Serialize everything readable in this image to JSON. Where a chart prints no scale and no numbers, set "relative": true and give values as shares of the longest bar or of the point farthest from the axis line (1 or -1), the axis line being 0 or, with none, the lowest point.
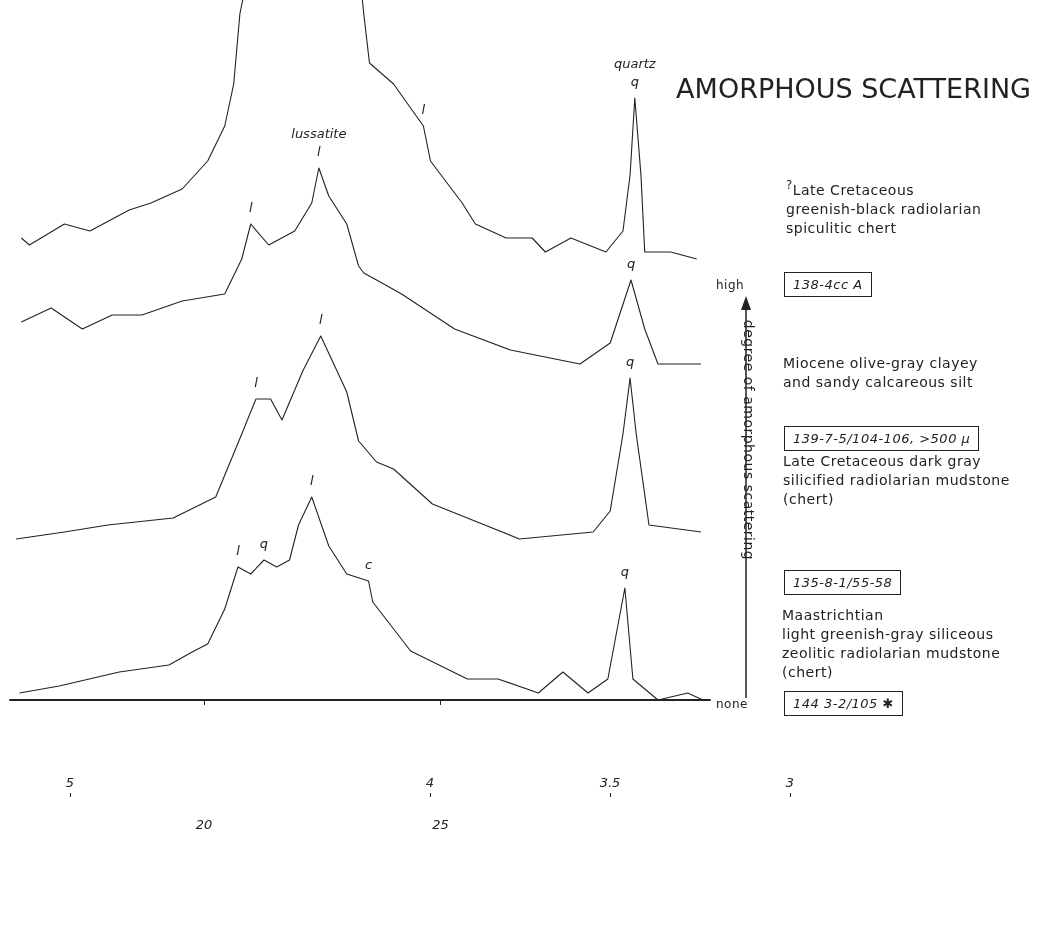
{
  "chart_data": {
    "type": "line",
    "relative": true,
    "title": "AMORPHOUS SCATTERING",
    "xlim": [
      15.9,
      30.7
    ],
    "xticks": [
      20,
      25
    ],
    "x2lim": [
      5,
      3
    ],
    "x2ticks": [
      5,
      4,
      3.5,
      3
    ],
    "grid": false,
    "legend": false,
    "marker": "none",
    "series": [
      {
        "name": "138-4cc A",
        "color": "#222222",
        "x": [
          16.14,
          16.31,
          17.05,
          17.59,
          18.42,
          18.88,
          19.54,
          20.08,
          20.44,
          20.63,
          20.76,
          20.82,
          21.0,
          23.35,
          23.38,
          23.5,
          24.01,
          24.64,
          24.79,
          25.46,
          25.74,
          26.39,
          26.94,
          27.22,
          27.76,
          28.5,
          28.86,
          29.01,
          29.11,
          29.24,
          29.32,
          29.87,
          30.42
        ],
        "values": [
          0.66,
          0.65,
          0.68,
          0.67,
          0.7,
          0.71,
          0.73,
          0.77,
          0.82,
          0.88,
          0.98,
          1,
          null,
          1,
          0.98,
          0.91,
          0.88,
          0.82,
          0.77,
          0.71,
          0.68,
          0.66,
          0.66,
          0.64,
          0.66,
          0.64,
          0.67,
          0.75,
          0.86,
          0.75,
          0.64,
          0.64,
          0.63
        ]
      },
      {
        "name": "139-7-5/104-106, >500 µ",
        "color": "#222222",
        "x": [
          16.14,
          16.77,
          17.43,
          18.06,
          18.69,
          19.54,
          20.44,
          20.8,
          20.99,
          21.37,
          21.92,
          22.28,
          22.43,
          22.64,
          23.02,
          23.27,
          23.38,
          23.65,
          24.18,
          25.3,
          26.48,
          27.95,
          28.59,
          29.03,
          29.32,
          29.6,
          30.51
        ],
        "values": [
          0.54,
          0.56,
          0.53,
          0.55,
          0.55,
          0.57,
          0.58,
          0.63,
          0.68,
          0.65,
          0.67,
          0.71,
          0.76,
          0.72,
          0.68,
          0.62,
          0.61,
          0.6,
          0.58,
          0.53,
          0.5,
          0.48,
          0.51,
          0.6,
          0.53,
          0.48,
          0.48
        ]
      },
      {
        "name": "135-8-1/55-58",
        "color": "#222222",
        "x": [
          16.03,
          17.05,
          17.97,
          19.35,
          20.25,
          20.8,
          21.1,
          21.41,
          21.65,
          22.09,
          22.47,
          23.02,
          23.27,
          23.65,
          24.01,
          24.83,
          25.57,
          26.67,
          28.23,
          28.59,
          28.86,
          29.01,
          29.14,
          29.41,
          30.51
        ],
        "values": [
          0.23,
          0.24,
          0.25,
          0.26,
          0.29,
          0.38,
          0.43,
          0.43,
          0.4,
          0.47,
          0.52,
          0.44,
          0.37,
          0.34,
          0.33,
          0.28,
          0.26,
          0.23,
          0.24,
          0.27,
          0.38,
          0.46,
          0.38,
          0.25,
          0.24
        ]
      },
      {
        "name": "144 3-2/105 ✱",
        "color": "#222222",
        "x": [
          16.1,
          16.94,
          18.21,
          19.26,
          19.79,
          20.08,
          20.44,
          20.72,
          20.99,
          21.27,
          21.54,
          21.81,
          22.0,
          22.28,
          22.64,
          23.02,
          23.48,
          23.57,
          24.37,
          25.57,
          26.22,
          27.07,
          27.59,
          28.12,
          28.54,
          28.9,
          29.07,
          29.6,
          30.23,
          30.55
        ],
        "values": [
          0.01,
          0.02,
          0.04,
          0.05,
          0.07,
          0.08,
          0.13,
          0.19,
          0.18,
          0.2,
          0.19,
          0.2,
          0.25,
          0.29,
          0.22,
          0.18,
          0.17,
          0.14,
          0.07,
          0.03,
          0.03,
          0.01,
          0.04,
          0.01,
          0.03,
          0.16,
          0.03,
          0,
          0.01,
          0
        ]
      }
    ],
    "annotations": [
      {
        "text": "quartz",
        "x": 29.11,
        "y": 0.86
      },
      {
        "text": "q",
        "x": 29.11,
        "y": 0.86
      },
      {
        "text": "lussatite",
        "x": 22.43,
        "y": 0.76
      },
      {
        "text": "l",
        "x": 22.43,
        "y": 0.76
      },
      {
        "text": "l",
        "x": 24.64,
        "y": 0.82
      },
      {
        "text": "l",
        "x": 20.99,
        "y": 0.68
      },
      {
        "text": "q",
        "x": 29.03,
        "y": 0.6
      },
      {
        "text": "l",
        "x": 22.47,
        "y": 0.52
      },
      {
        "text": "q",
        "x": 29.01,
        "y": 0.46
      },
      {
        "text": "l",
        "x": 21.1,
        "y": 0.43
      },
      {
        "text": "l",
        "x": 22.28,
        "y": 0.29
      },
      {
        "text": "l",
        "x": 20.72,
        "y": 0.19
      },
      {
        "text": "q",
        "x": 21.27,
        "y": 0.2
      },
      {
        "text": "c",
        "x": 23.48,
        "y": 0.17
      },
      {
        "text": "q",
        "x": 28.9,
        "y": 0.16
      },
      "$^{?}$Late Cretaceous\ngreenish-black radiolarian\nspiculitic chert",
      "Miocene olive-gray clayey\nand sandy calcareous silt",
      "Late Cretaceous dark gray\nsilicified radiolarian mudstone\n(chert)",
      "Maastrichtian\nlight greenish-gray siliceous\nzeolitic radiolarian mudstone\n(chert)",
      "high",
      "none",
      "degree of amorphous scattering"
    ]
  }
}
